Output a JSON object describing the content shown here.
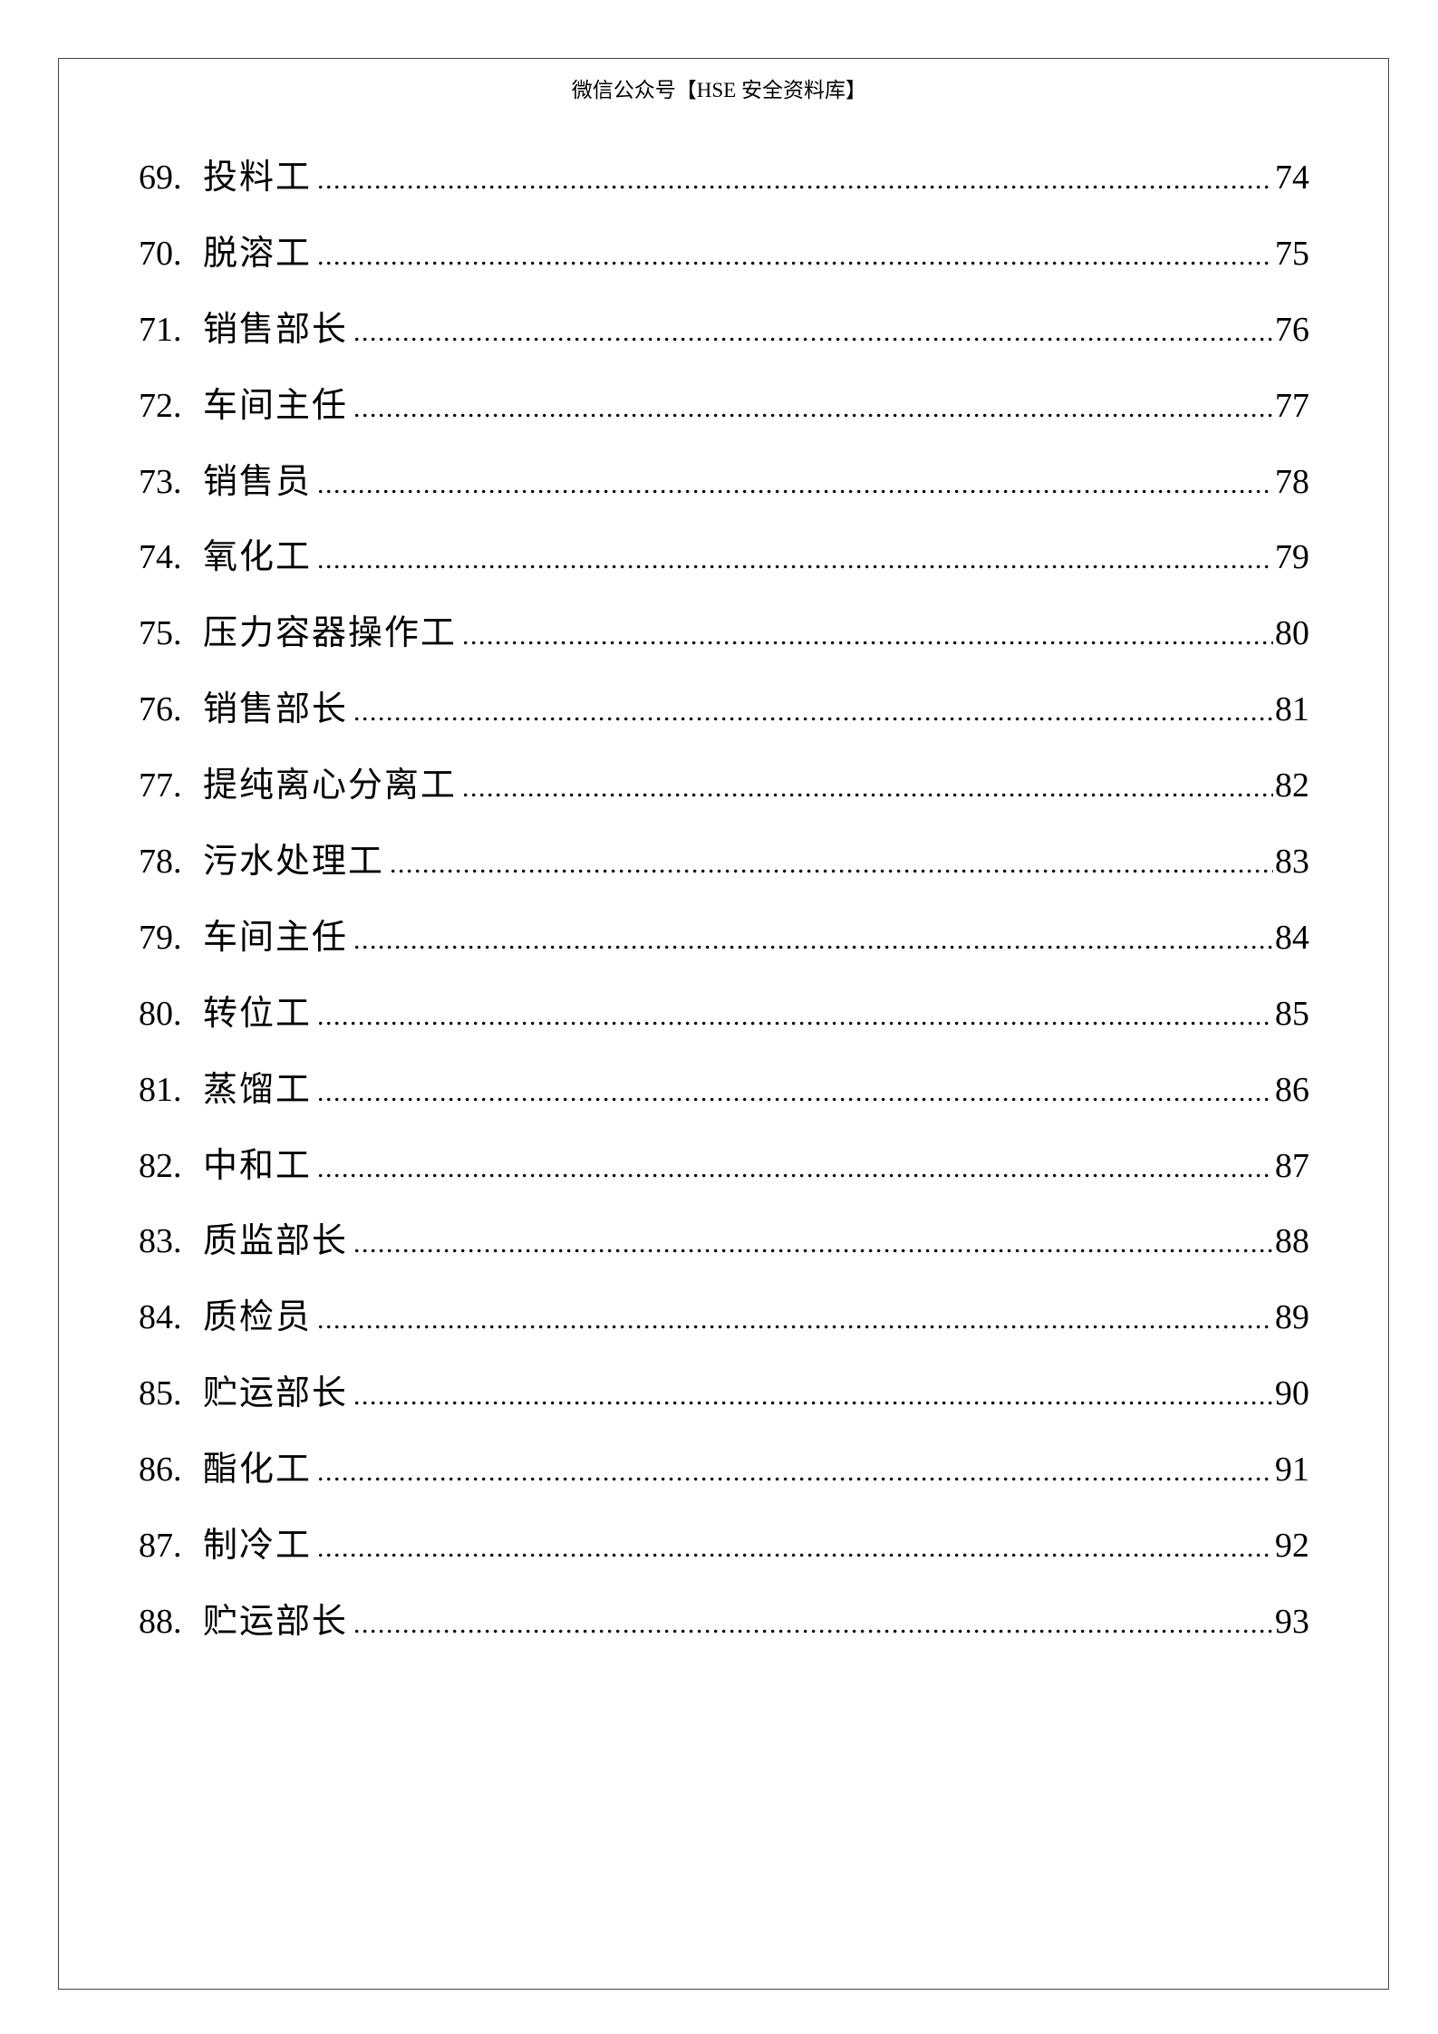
{
  "header": "微信公众号【HSE 安全资料库】",
  "toc": [
    {
      "num": "69.",
      "label": "投料工",
      "page": "74"
    },
    {
      "num": "70.",
      "label": "脱溶工",
      "page": "75"
    },
    {
      "num": "71.",
      "label": "销售部长",
      "page": "76"
    },
    {
      "num": "72.",
      "label": "车间主任",
      "page": "77"
    },
    {
      "num": "73.",
      "label": "销售员",
      "page": "78"
    },
    {
      "num": "74.",
      "label": "氧化工",
      "page": "79"
    },
    {
      "num": "75.",
      "label": "压力容器操作工",
      "page": "80"
    },
    {
      "num": "76.",
      "label": "销售部长",
      "page": "81"
    },
    {
      "num": "77.",
      "label": "提纯离心分离工",
      "page": "82"
    },
    {
      "num": "78.",
      "label": "污水处理工",
      "page": "83"
    },
    {
      "num": "79.",
      "label": "车间主任",
      "page": "84"
    },
    {
      "num": "80.",
      "label": "转位工",
      "page": "85"
    },
    {
      "num": "81.",
      "label": "蒸馏工",
      "page": "86"
    },
    {
      "num": "82.",
      "label": "中和工",
      "page": "87"
    },
    {
      "num": "83.",
      "label": "质监部长",
      "page": "88"
    },
    {
      "num": "84.",
      "label": "质检员",
      "page": "89"
    },
    {
      "num": "85.",
      "label": "贮运部长",
      "page": "90"
    },
    {
      "num": "86.",
      "label": "酯化工",
      "page": "91"
    },
    {
      "num": "87.",
      "label": "制冷工",
      "page": "92"
    },
    {
      "num": "88.",
      "label": "贮运部长",
      "page": "93"
    }
  ]
}
